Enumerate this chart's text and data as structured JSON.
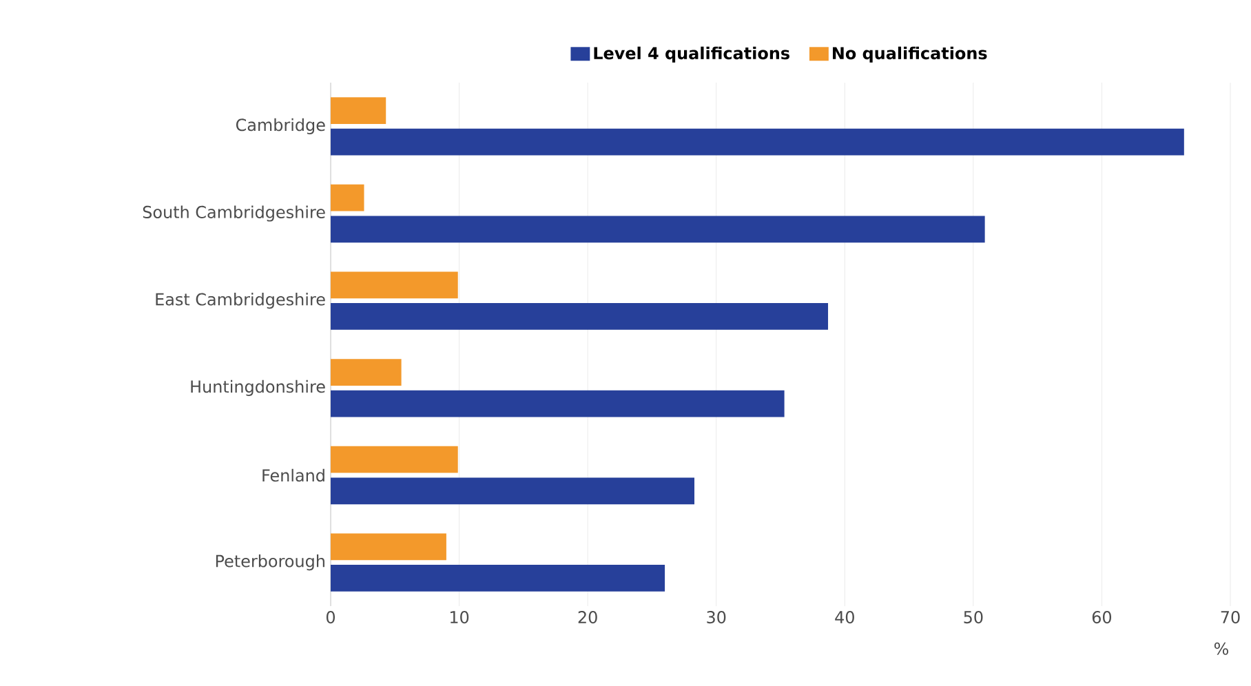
{
  "chart_data": {
    "type": "bar",
    "orientation": "horizontal",
    "categories": [
      "Cambridge",
      "South Cambridgeshire",
      "East Cambridgeshire",
      "Huntingdonshire",
      "Fenland",
      "Peterborough"
    ],
    "series": [
      {
        "name": "Level 4 qualifications",
        "color": "#27409a",
        "values": [
          66.4,
          50.9,
          38.7,
          35.3,
          28.3,
          26.0
        ]
      },
      {
        "name": "No qualifications",
        "color": "#f3992b",
        "values": [
          4.3,
          2.6,
          9.9,
          5.5,
          9.9,
          9.0
        ]
      }
    ],
    "xlabel": "%",
    "xlim": [
      0,
      70
    ],
    "xticks": [
      0,
      10,
      20,
      30,
      40,
      50,
      60,
      70
    ],
    "grid": "x",
    "legend": "top"
  }
}
